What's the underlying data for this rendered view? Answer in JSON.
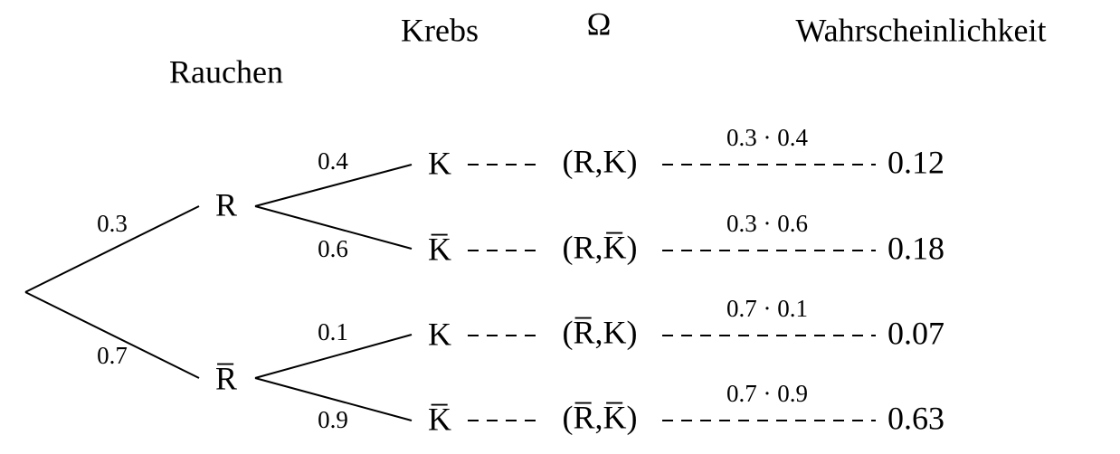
{
  "header": {
    "columns": [
      "Krebs",
      "Ω",
      "Wahrscheinlichkeit"
    ],
    "smoking": "Rauchen"
  },
  "level1": [
    {
      "label": "R",
      "p": 0.3
    },
    {
      "label": "R̅",
      "p": 0.7
    }
  ],
  "branches": [
    {
      "label": "K",
      "p": 0.4,
      "outcome": "(R,K)",
      "product": "0.3 · 0.4",
      "probability": 0.12
    },
    {
      "label": "K̅",
      "p": 0.6,
      "outcome": "(R,K̅)",
      "product": "0.3 · 0.6",
      "probability": 0.18
    },
    {
      "label": "K",
      "p": 0.1,
      "outcome": "(R̅,K)",
      "product": "0.7 · 0.1",
      "probability": 0.07
    },
    {
      "label": "K̅",
      "p": 0.9,
      "outcome": "(R̅,K̅)",
      "product": "0.7 · 0.9",
      "probability": 0.63
    }
  ]
}
